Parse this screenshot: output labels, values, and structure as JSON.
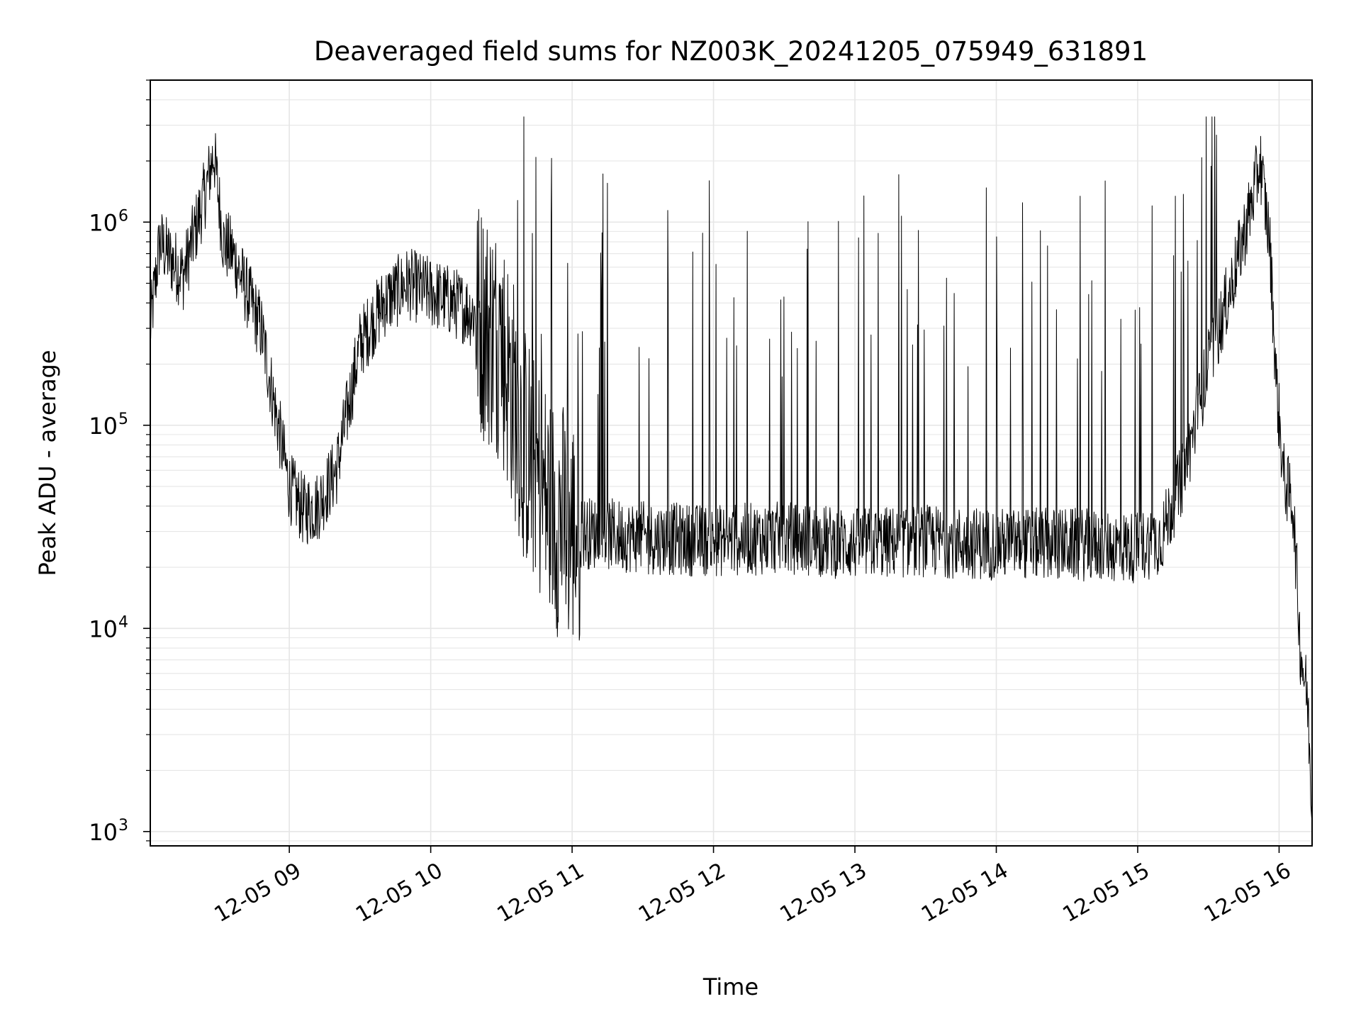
{
  "chart_data": {
    "type": "line",
    "title": "Deaveraged field sums for NZ003K_20241205_075949_631891",
    "xlabel": "Time",
    "ylabel": "Peak ADU - average",
    "yscale": "log",
    "ylim": [
      850,
      5000000
    ],
    "xlim": [
      "2024-12-05 08:01",
      "2024-12-05 16:14"
    ],
    "grid": true,
    "line_color": "#000000",
    "x_ticks": [
      {
        "value": "2024-12-05 09:00",
        "label": "12-05 09"
      },
      {
        "value": "2024-12-05 10:00",
        "label": "12-05 10"
      },
      {
        "value": "2024-12-05 11:00",
        "label": "12-05 11"
      },
      {
        "value": "2024-12-05 12:00",
        "label": "12-05 12"
      },
      {
        "value": "2024-12-05 13:00",
        "label": "12-05 13"
      },
      {
        "value": "2024-12-05 14:00",
        "label": "12-05 14"
      },
      {
        "value": "2024-12-05 15:00",
        "label": "12-05 15"
      },
      {
        "value": "2024-12-05 16:00",
        "label": "12-05 16"
      }
    ],
    "y_ticks": [
      {
        "value": 1000,
        "base": "10",
        "exp": "3"
      },
      {
        "value": 10000,
        "base": "10",
        "exp": "4"
      },
      {
        "value": 100000,
        "base": "10",
        "exp": "5"
      },
      {
        "value": 1000000,
        "base": "10",
        "exp": "6"
      }
    ],
    "series": [
      {
        "values": [
          [
            "2024-12-05 08:01",
            300000
          ],
          [
            "2024-12-05 08:05",
            800000
          ],
          [
            "2024-12-05 08:10",
            650000
          ],
          [
            "2024-12-05 08:15",
            550000
          ],
          [
            "2024-12-05 08:20",
            900000
          ],
          [
            "2024-12-05 08:25",
            1500000
          ],
          [
            "2024-12-05 08:28",
            2200000
          ],
          [
            "2024-12-05 08:32",
            800000
          ],
          [
            "2024-12-05 08:36",
            700000
          ],
          [
            "2024-12-05 08:42",
            450000
          ],
          [
            "2024-12-05 08:48",
            300000
          ],
          [
            "2024-12-05 08:54",
            120000
          ],
          [
            "2024-12-05 09:00",
            50000
          ],
          [
            "2024-12-05 09:06",
            38000
          ],
          [
            "2024-12-05 09:12",
            40000
          ],
          [
            "2024-12-05 09:20",
            60000
          ],
          [
            "2024-12-05 09:30",
            250000
          ],
          [
            "2024-12-05 09:40",
            400000
          ],
          [
            "2024-12-05 09:50",
            500000
          ],
          [
            "2024-12-05 10:00",
            450000
          ],
          [
            "2024-12-05 10:10",
            400000
          ],
          [
            "2024-12-05 10:20",
            350000
          ],
          [
            "2024-12-05 10:30",
            250000
          ],
          [
            "2024-12-05 10:40",
            80000
          ],
          [
            "2024-12-05 10:50",
            40000
          ],
          [
            "2024-12-05 11:00",
            30000
          ],
          [
            "2024-12-05 11:30",
            28000
          ],
          [
            "2024-12-05 12:00",
            27000
          ],
          [
            "2024-12-05 12:30",
            28000
          ],
          [
            "2024-12-05 13:00",
            26000
          ],
          [
            "2024-12-05 13:30",
            27000
          ],
          [
            "2024-12-05 14:00",
            26000
          ],
          [
            "2024-12-05 14:30",
            26000
          ],
          [
            "2024-12-05 15:00",
            25000
          ],
          [
            "2024-12-05 15:10",
            28000
          ],
          [
            "2024-12-05 15:20",
            60000
          ],
          [
            "2024-12-05 15:30",
            200000
          ],
          [
            "2024-12-05 15:40",
            500000
          ],
          [
            "2024-12-05 15:48",
            1200000
          ],
          [
            "2024-12-05 15:52",
            2000000
          ],
          [
            "2024-12-05 15:56",
            800000
          ],
          [
            "2024-12-05 15:59",
            150000
          ],
          [
            "2024-12-05 16:02",
            55000
          ],
          [
            "2024-12-05 16:06",
            40000
          ],
          [
            "2024-12-05 16:09",
            8000
          ],
          [
            "2024-12-05 16:12",
            4500
          ],
          [
            "2024-12-05 16:14",
            1300
          ]
        ]
      }
    ]
  }
}
